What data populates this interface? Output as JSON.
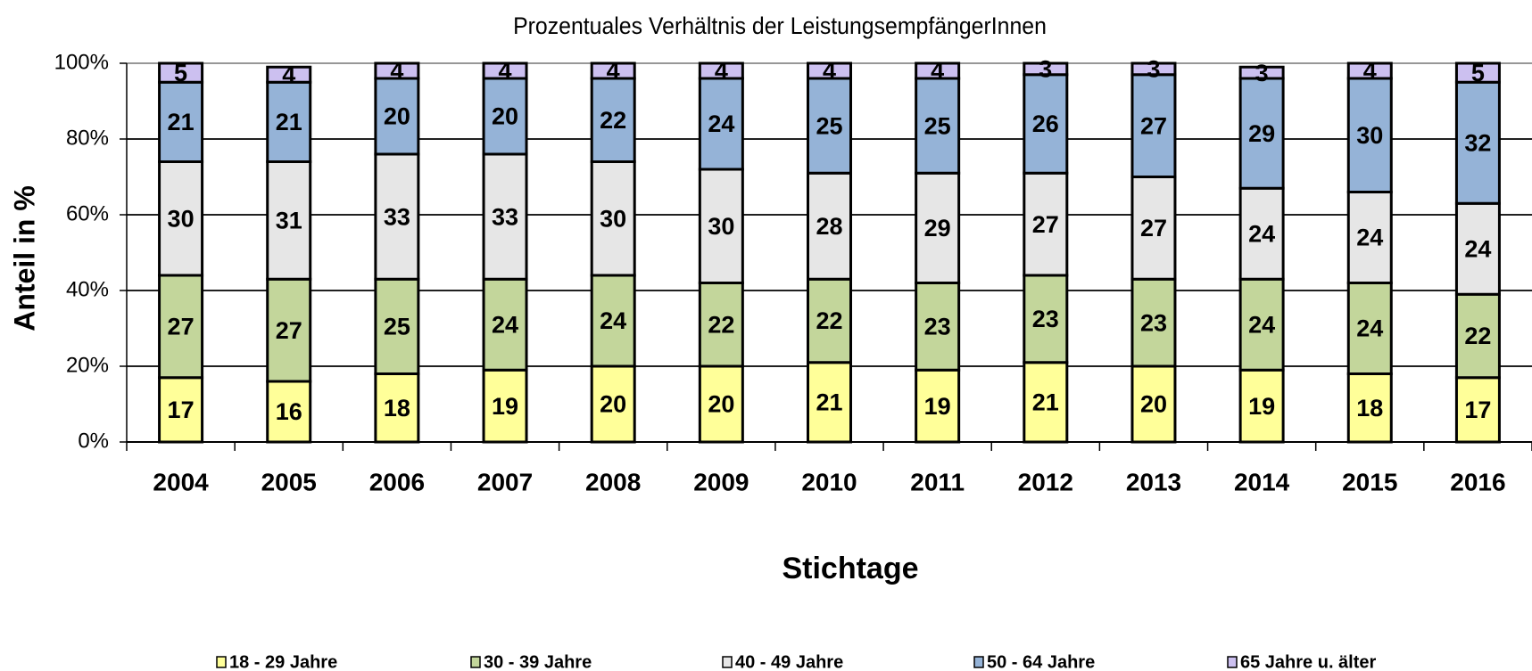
{
  "chart_data": {
    "type": "stacked_bar",
    "title": "Prozentuales Verhältnis der LeistungsempfängerInnen",
    "x_label": "Stichtage",
    "y_label": "Anteil in %",
    "categories": [
      "2004",
      "2005",
      "2006",
      "2007",
      "2008",
      "2009",
      "2010",
      "2011",
      "2012",
      "2013",
      "2014",
      "2015",
      "2016"
    ],
    "series": [
      {
        "name": "18 - 29 Jahre",
        "color": "#ffff99",
        "values": [
          17,
          16,
          18,
          19,
          20,
          20,
          21,
          19,
          21,
          20,
          19,
          18,
          17
        ]
      },
      {
        "name": "30 - 39 Jahre",
        "color": "#c3d69b",
        "values": [
          27,
          27,
          25,
          24,
          24,
          22,
          22,
          23,
          23,
          23,
          24,
          24,
          22
        ]
      },
      {
        "name": "40 - 49 Jahre",
        "color": "#e6e6e6",
        "values": [
          30,
          31,
          33,
          33,
          30,
          30,
          28,
          29,
          27,
          27,
          24,
          24,
          24
        ]
      },
      {
        "name": "50 - 64 Jahre",
        "color": "#95b3d7",
        "values": [
          21,
          21,
          20,
          20,
          22,
          24,
          25,
          25,
          26,
          27,
          29,
          30,
          32
        ]
      },
      {
        "name": "65 Jahre u. älter",
        "color": "#ccc0f0",
        "values": [
          5,
          4,
          4,
          4,
          4,
          4,
          4,
          4,
          3,
          3,
          3,
          4,
          5
        ]
      }
    ],
    "ylim": [
      0,
      100
    ],
    "yticks": [
      {
        "value": 0,
        "label": "0%"
      },
      {
        "value": 20,
        "label": "20%"
      },
      {
        "value": 40,
        "label": "40%"
      },
      {
        "value": 60,
        "label": "60%"
      },
      {
        "value": 80,
        "label": "80%"
      },
      {
        "value": 100,
        "label": "100%"
      }
    ],
    "grid": true,
    "legend": "bottom"
  }
}
